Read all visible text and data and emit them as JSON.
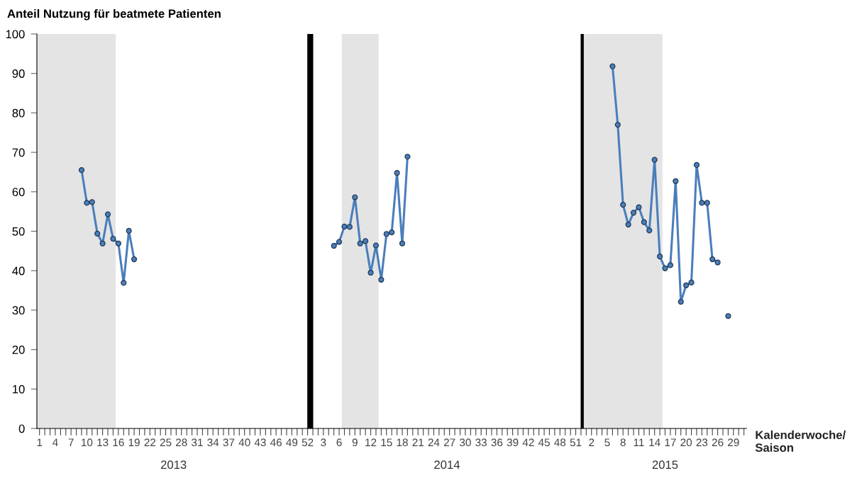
{
  "chart_data": [
    {
      "type": "line",
      "ylabel": "Anteil Nutzung für beatmete Patienten",
      "xlabel": "2013",
      "x": [
        9,
        10,
        11,
        12,
        13,
        14,
        15,
        16,
        17,
        18,
        19
      ],
      "series": [
        {
          "color": "#4a7ebb",
          "values": [
            65.5,
            57.2,
            57.4,
            49.4,
            46.9,
            54.3,
            48.1,
            46.9,
            36.9,
            50.1,
            42.9
          ]
        }
      ],
      "marker": "circle",
      "line_style": "solid",
      "ylim": [
        0,
        100
      ],
      "yticks": [
        0,
        10,
        20,
        30,
        40,
        50,
        60,
        70,
        80,
        90,
        100
      ],
      "xlim": [
        0.5,
        52.5
      ],
      "xticks": [
        1,
        {
          "value": 2,
          "label": null
        },
        {
          "value": 3,
          "label": null
        },
        4,
        {
          "value": 5,
          "label": null
        },
        {
          "value": 6,
          "label": null
        },
        7,
        {
          "value": 8,
          "label": null
        },
        {
          "value": 9,
          "label": null
        },
        10,
        {
          "value": 11,
          "label": null
        },
        {
          "value": 12,
          "label": null
        },
        13,
        {
          "value": 14,
          "label": null
        },
        {
          "value": 15,
          "label": null
        },
        16,
        {
          "value": 17,
          "label": null
        },
        {
          "value": 18,
          "label": null
        },
        19,
        {
          "value": 20,
          "label": null
        },
        {
          "value": 21,
          "label": null
        },
        22,
        {
          "value": 23,
          "label": null
        },
        {
          "value": 24,
          "label": null
        },
        25,
        {
          "value": 26,
          "label": null
        },
        {
          "value": 27,
          "label": null
        },
        28,
        {
          "value": 29,
          "label": null
        },
        {
          "value": 30,
          "label": null
        },
        31,
        {
          "value": 32,
          "label": null
        },
        {
          "value": 33,
          "label": null
        },
        34,
        {
          "value": 35,
          "label": null
        },
        {
          "value": 36,
          "label": null
        },
        37,
        {
          "value": 38,
          "label": null
        },
        {
          "value": 39,
          "label": null
        },
        40,
        {
          "value": 41,
          "label": null
        },
        {
          "value": 42,
          "label": null
        },
        43,
        {
          "value": 44,
          "label": null
        },
        {
          "value": 45,
          "label": null
        },
        46,
        {
          "value": 47,
          "label": null
        },
        {
          "value": 48,
          "label": null
        },
        49,
        {
          "value": 50,
          "label": null
        },
        {
          "value": 51,
          "label": null
        },
        52
      ],
      "bands": [
        {
          "axis": "x",
          "from": 0.5,
          "to": 15.5,
          "color": "#e4e4e4"
        }
      ],
      "ref_lines": [
        {
          "axis": "x",
          "value": 52.5,
          "color": "#000000"
        }
      ]
    },
    {
      "type": "line",
      "xlabel": "2014",
      "tick_labels": "x",
      "x": [
        5,
        6,
        7,
        8,
        9,
        10,
        11,
        12,
        13,
        14,
        15,
        16,
        17,
        18,
        19
      ],
      "series": [
        {
          "color": "#4a7ebb",
          "values": [
            46.3,
            47.3,
            51.2,
            51.1,
            58.6,
            46.9,
            47.5,
            39.5,
            46.4,
            37.7,
            49.3,
            49.7,
            64.8,
            46.9,
            68.9
          ]
        }
      ],
      "marker": "circle",
      "line_style": "solid",
      "ylim": [
        0,
        100
      ],
      "xlim": [
        0.5,
        52.5
      ],
      "xticks": [
        {
          "value": 1,
          "label": null
        },
        {
          "value": 2,
          "label": null
        },
        3,
        {
          "value": 4,
          "label": null
        },
        {
          "value": 5,
          "label": null
        },
        6,
        {
          "value": 7,
          "label": null
        },
        {
          "value": 8,
          "label": null
        },
        9,
        {
          "value": 10,
          "label": null
        },
        {
          "value": 11,
          "label": null
        },
        12,
        {
          "value": 13,
          "label": null
        },
        {
          "value": 14,
          "label": null
        },
        15,
        {
          "value": 16,
          "label": null
        },
        {
          "value": 17,
          "label": null
        },
        18,
        {
          "value": 19,
          "label": null
        },
        {
          "value": 20,
          "label": null
        },
        21,
        {
          "value": 22,
          "label": null
        },
        {
          "value": 23,
          "label": null
        },
        24,
        {
          "value": 25,
          "label": null
        },
        {
          "value": 26,
          "label": null
        },
        27,
        {
          "value": 28,
          "label": null
        },
        {
          "value": 29,
          "label": null
        },
        30,
        {
          "value": 31,
          "label": null
        },
        {
          "value": 32,
          "label": null
        },
        33,
        {
          "value": 34,
          "label": null
        },
        {
          "value": 35,
          "label": null
        },
        36,
        {
          "value": 37,
          "label": null
        },
        {
          "value": 38,
          "label": null
        },
        39,
        {
          "value": 40,
          "label": null
        },
        {
          "value": 41,
          "label": null
        },
        42,
        {
          "value": 43,
          "label": null
        },
        {
          "value": 44,
          "label": null
        },
        45,
        {
          "value": 46,
          "label": null
        },
        {
          "value": 47,
          "label": null
        },
        48,
        {
          "value": 49,
          "label": null
        },
        {
          "value": 50,
          "label": null
        },
        51,
        {
          "value": 52,
          "label": null
        }
      ],
      "bands": [
        {
          "axis": "x",
          "from": 6.5,
          "to": 13.5,
          "color": "#e4e4e4"
        }
      ],
      "ref_lines": [
        {
          "axis": "x",
          "value": 52.5,
          "color": "#000000"
        }
      ]
    },
    {
      "type": "line",
      "xlabel": "2015",
      "tick_labels": "x",
      "annotations": [
        "Kalenderwoche/\nSaison"
      ],
      "x": [
        6,
        7,
        8,
        9,
        10,
        11,
        12,
        13,
        14,
        15,
        16,
        17,
        18,
        19,
        20,
        21,
        22,
        23,
        24,
        25,
        26,
        27,
        28
      ],
      "series": [
        {
          "color": "#4a7ebb",
          "values": [
            91.8,
            77.0,
            56.7,
            51.7,
            54.7,
            56.1,
            52.3,
            50.2,
            68.1,
            43.6,
            40.6,
            41.4,
            62.7,
            32.1,
            36.3,
            37.0,
            66.8,
            57.2,
            57.2,
            42.9,
            42.1,
            null,
            28.5
          ]
        }
      ],
      "marker": "circle",
      "line_style": "solid",
      "ylim": [
        0,
        100
      ],
      "xlim": [
        0.5,
        31.5
      ],
      "xticks": [
        {
          "value": 1,
          "label": null
        },
        2,
        {
          "value": 3,
          "label": null
        },
        {
          "value": 4,
          "label": null
        },
        5,
        {
          "value": 6,
          "label": null
        },
        {
          "value": 7,
          "label": null
        },
        8,
        {
          "value": 9,
          "label": null
        },
        {
          "value": 10,
          "label": null
        },
        11,
        {
          "value": 12,
          "label": null
        },
        {
          "value": 13,
          "label": null
        },
        14,
        {
          "value": 15,
          "label": null
        },
        {
          "value": 16,
          "label": null
        },
        17,
        {
          "value": 18,
          "label": null
        },
        {
          "value": 19,
          "label": null
        },
        20,
        {
          "value": 21,
          "label": null
        },
        {
          "value": 22,
          "label": null
        },
        23,
        {
          "value": 24,
          "label": null
        },
        {
          "value": 25,
          "label": null
        },
        26,
        {
          "value": 27,
          "label": null
        },
        {
          "value": 28,
          "label": null
        },
        29,
        {
          "value": 30,
          "label": null
        },
        {
          "value": 31,
          "label": null
        }
      ],
      "bands": [
        {
          "axis": "x",
          "from": 0.5,
          "to": 15.5,
          "color": "#e4e4e4"
        }
      ]
    }
  ]
}
